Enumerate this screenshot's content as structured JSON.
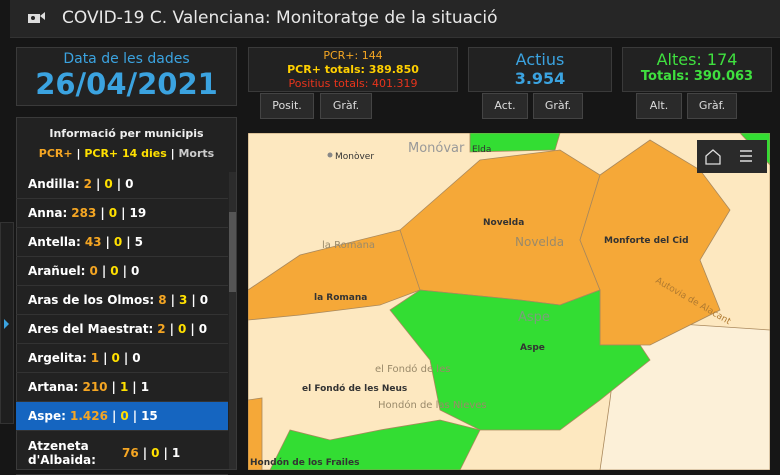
{
  "header": {
    "title": "COVID-19 C. Valenciana: Monitoratge de la situació"
  },
  "date_panel": {
    "label": "Data de les dades",
    "value": "26/04/2021"
  },
  "pcr_panel": {
    "line1": "PCR+: 144",
    "line2": "PCR+ totals: 389.850",
    "line3": "Positius totals: 401.319"
  },
  "active_panel": {
    "label": "Actius",
    "value": "3.954"
  },
  "discharged_panel": {
    "line1": "Altes: 174",
    "line2": "Totals: 390.063"
  },
  "buttons": [
    "Posit.",
    "Gràf.",
    "Act.",
    "Gràf.",
    "Alt.",
    "Gràf."
  ],
  "sidebar": {
    "title": "Informació per municipis",
    "legend": [
      "PCR+",
      "PCR+ 14 dies",
      "Morts"
    ],
    "separator": "|",
    "rows": [
      {
        "name": "Andilla:",
        "pcr": "2",
        "pcr14": "0",
        "deaths": "0"
      },
      {
        "name": "Anna:",
        "pcr": "283",
        "pcr14": "0",
        "deaths": "19"
      },
      {
        "name": "Antella:",
        "pcr": "43",
        "pcr14": "0",
        "deaths": "5"
      },
      {
        "name": "Arañuel:",
        "pcr": "0",
        "pcr14": "0",
        "deaths": "0"
      },
      {
        "name": "Aras de los Olmos:",
        "pcr": "8",
        "pcr14": "3",
        "deaths": "0"
      },
      {
        "name": "Ares del Maestrat:",
        "pcr": "2",
        "pcr14": "0",
        "deaths": "0"
      },
      {
        "name": "Argelita:",
        "pcr": "1",
        "pcr14": "0",
        "deaths": "0"
      },
      {
        "name": "Artana:",
        "pcr": "210",
        "pcr14": "1",
        "deaths": "1"
      },
      {
        "name": "Aspe:",
        "pcr": "1.426",
        "pcr14": "0",
        "deaths": "15"
      },
      {
        "name": "Atzeneta d'Albaida:",
        "pcr": "76",
        "pcr14": "0",
        "deaths": "1"
      }
    ]
  },
  "map": {
    "labels": [
      "Monòver",
      "Monóvar",
      "Elda",
      "Novelda",
      "Novelda",
      "Monforte del Cid",
      "la Romana",
      "la Romana",
      "Aspe",
      "Aspe",
      "el Fondó de les Neus",
      "el Fondó de les",
      "Hondón de las Nieves",
      "Hondón de los Frailes",
      "Autovia de Alacant"
    ]
  }
}
